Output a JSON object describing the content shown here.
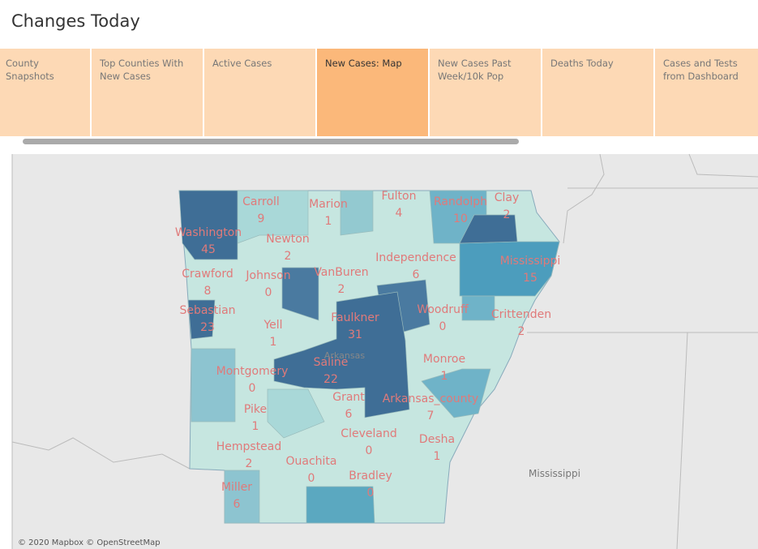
{
  "title": "Changes Today",
  "tabs": [
    "County Snapshots",
    "Top Counties With New Cases",
    "Active Cases",
    "New Cases: Map",
    "New Cases Past Week/10k Pop",
    "Deaths Today",
    "Cases and Tests from Dashboard"
  ],
  "map": {
    "counties": [
      {
        "name": "Carroll",
        "value": 9
      },
      {
        "name": "Marion",
        "value": 1
      },
      {
        "name": "Fulton",
        "value": 4
      },
      {
        "name": "Randolph",
        "value": 10
      },
      {
        "name": "Clay",
        "value": 2
      },
      {
        "name": "Washington",
        "value": 45
      },
      {
        "name": "Newton",
        "value": 2
      },
      {
        "name": "Independence",
        "value": 6
      },
      {
        "name": "Mississippi",
        "value": 15
      },
      {
        "name": "Crawford",
        "value": 8
      },
      {
        "name": "Johnson",
        "value": 0
      },
      {
        "name": "VanBuren",
        "value": 2
      },
      {
        "name": "Sebastian",
        "value": 23
      },
      {
        "name": "Woodruff",
        "value": 0
      },
      {
        "name": "Crittenden",
        "value": 2
      },
      {
        "name": "Faulkner",
        "value": 31
      },
      {
        "name": "Yell",
        "value": 1
      },
      {
        "name": "Monroe",
        "value": 1
      },
      {
        "name": "Montgomery",
        "value": 0
      },
      {
        "name": "Saline",
        "value": 22
      },
      {
        "name": "Grant",
        "value": 6
      },
      {
        "name": "Arkansas_county",
        "value": 7
      },
      {
        "name": "Pike",
        "value": 1
      },
      {
        "name": "Cleveland",
        "value": 0
      },
      {
        "name": "Desha",
        "value": 1
      },
      {
        "name": "Hempstead",
        "value": 2
      },
      {
        "name": "Ouachita",
        "value": 0
      },
      {
        "name": "Bradley",
        "value": 0
      },
      {
        "name": "Miller",
        "value": 6
      }
    ],
    "place_labels": [
      "Arkansas",
      "Mississippi"
    ],
    "attribution": "© 2020 Mapbox © OpenStreetMap"
  }
}
